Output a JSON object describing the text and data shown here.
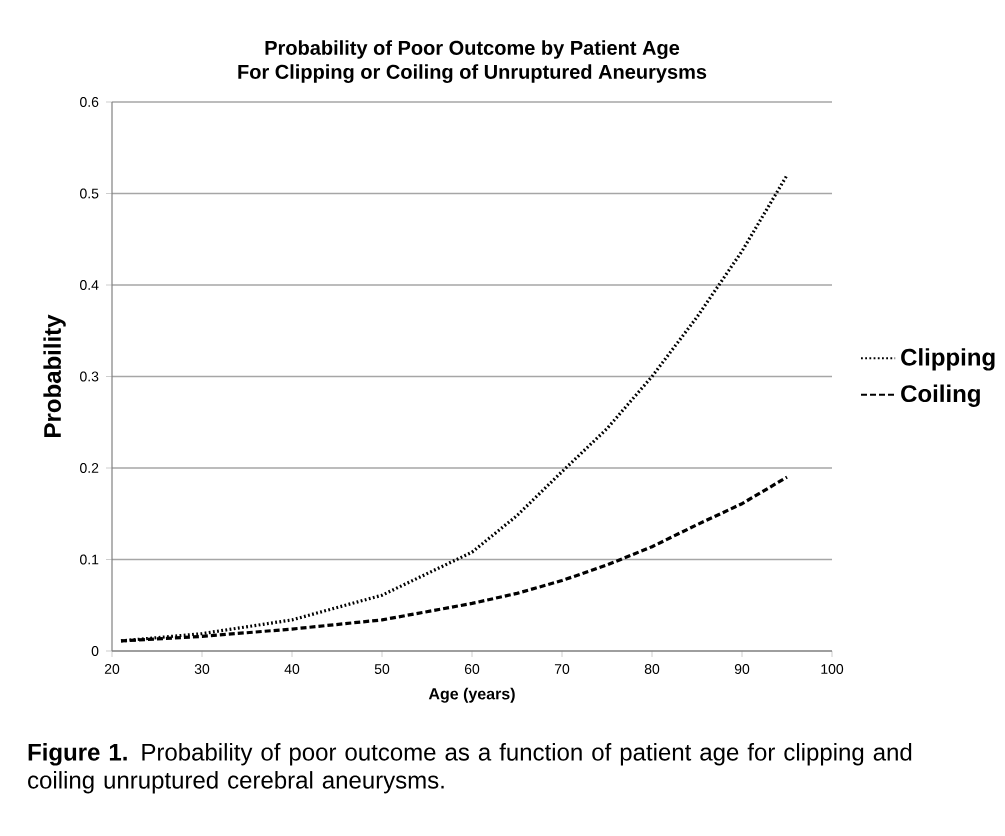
{
  "chart_data": {
    "type": "line",
    "title": "Probability of Poor Outcome by Patient Age",
    "subtitle": "For Clipping or Coiling of Unruptured Aneurysms",
    "xlabel": "Age (years)",
    "ylabel": "Probability",
    "x": [
      21,
      30,
      40,
      50,
      60,
      65,
      70,
      75,
      80,
      85,
      90,
      95
    ],
    "series": [
      {
        "name": "Clipping",
        "color": "#000000",
        "line_style": "dotted",
        "values": [
          0.011,
          0.019,
          0.034,
          0.061,
          0.108,
          0.148,
          0.196,
          0.243,
          0.3,
          0.365,
          0.437,
          0.52
        ]
      },
      {
        "name": "Coiling",
        "color": "#000000",
        "line_style": "dashed",
        "values": [
          0.011,
          0.016,
          0.024,
          0.034,
          0.052,
          0.063,
          0.077,
          0.094,
          0.114,
          0.138,
          0.161,
          0.19
        ]
      }
    ],
    "xlim": [
      20,
      100
    ],
    "xticks": [
      20,
      30,
      40,
      50,
      60,
      70,
      80,
      90,
      100
    ],
    "ylim": [
      0,
      0.6
    ],
    "yticks": [
      0,
      0.1,
      0.2,
      0.3,
      0.4,
      0.5,
      0.6
    ],
    "grid": "y",
    "legend": "right",
    "annotations": [
      "**Figure 1.** Probability of poor outcome as a function of patient age for clipping and coiling unruptured cerebral aneurysms."
    ]
  }
}
